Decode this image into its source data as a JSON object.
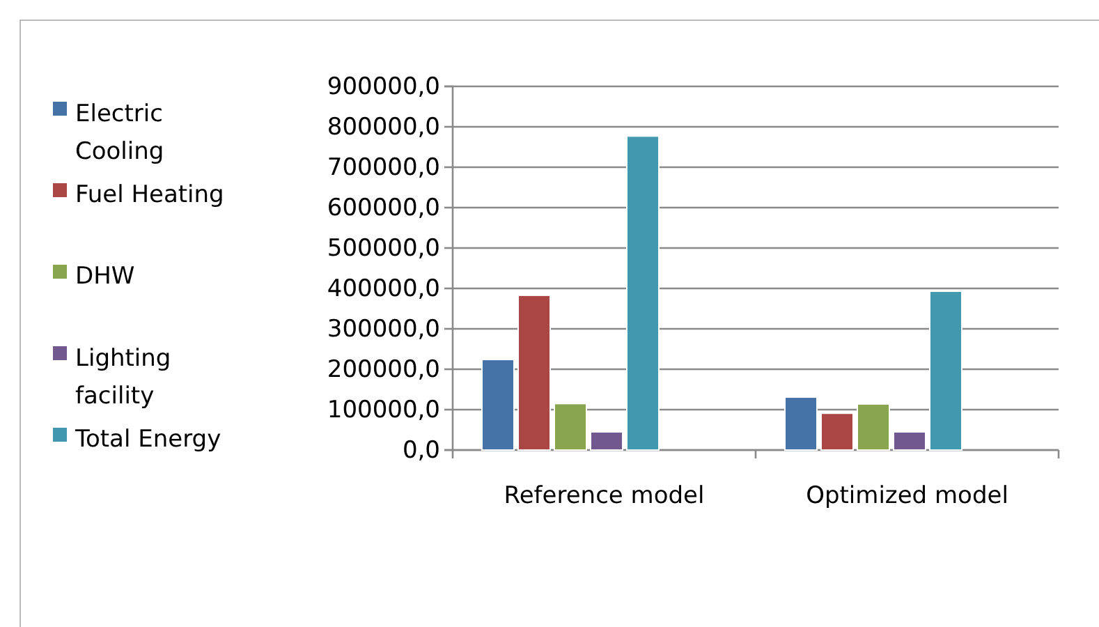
{
  "chart_data": {
    "type": "bar",
    "categories": [
      "Reference model",
      "Optimized model"
    ],
    "series": [
      {
        "name": "Electric Cooling",
        "color": "#4572a7",
        "values": [
          224000,
          131000
        ]
      },
      {
        "name": "Fuel Heating",
        "color": "#aa4643",
        "values": [
          383000,
          91000
        ]
      },
      {
        "name": "DHW",
        "color": "#89a54e",
        "values": [
          115000,
          114000
        ]
      },
      {
        "name": "Lighting facility",
        "color": "#71588f",
        "values": [
          45000,
          45000
        ]
      },
      {
        "name": "Total Energy",
        "color": "#4198af",
        "values": [
          777000,
          393000
        ]
      }
    ],
    "ylim": [
      0,
      900000
    ],
    "yticks": [
      {
        "value": 0,
        "label": "0,0"
      },
      {
        "value": 100000,
        "label": "100000,0"
      },
      {
        "value": 200000,
        "label": "200000,0"
      },
      {
        "value": 300000,
        "label": "300000,0"
      },
      {
        "value": 400000,
        "label": "400000,0"
      },
      {
        "value": 500000,
        "label": "500000,0"
      },
      {
        "value": 600000,
        "label": "600000,0"
      },
      {
        "value": 700000,
        "label": "700000,0"
      },
      {
        "value": 800000,
        "label": "800000,0"
      },
      {
        "value": 900000,
        "label": "900000,0"
      }
    ],
    "grid": "y",
    "legend": "left"
  }
}
